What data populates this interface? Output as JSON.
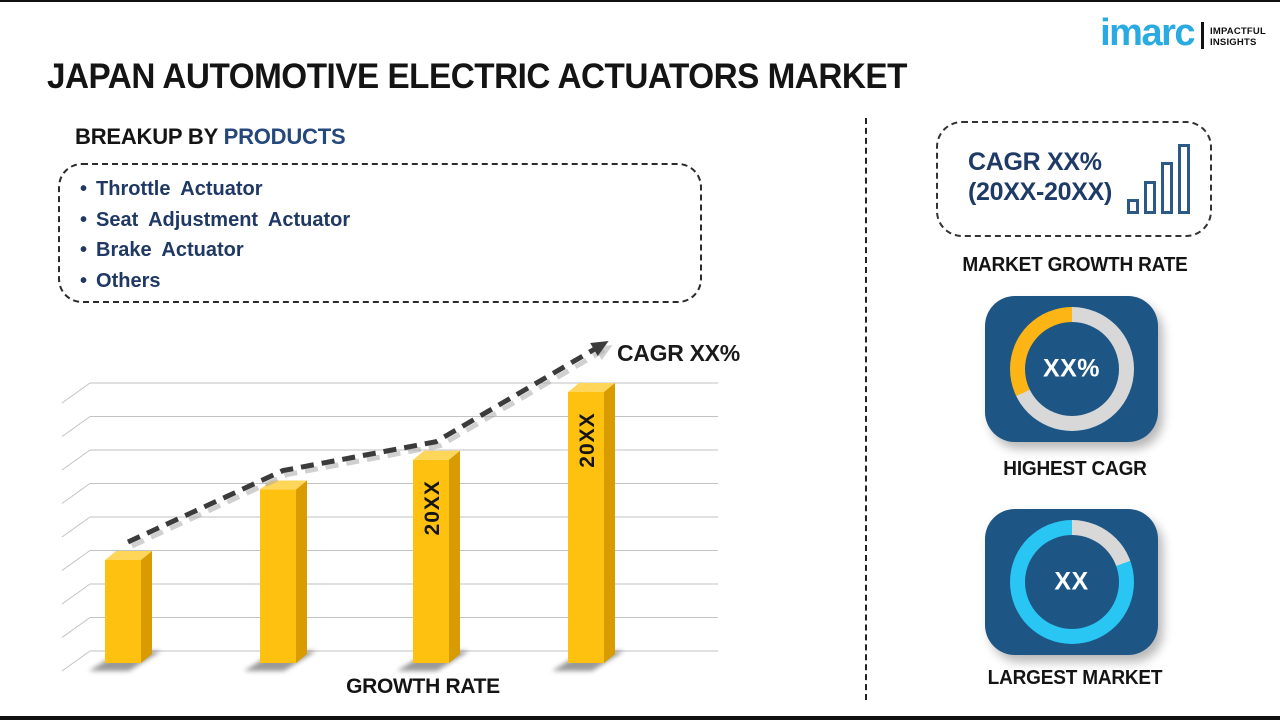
{
  "page": {
    "title": "JAPAN AUTOMOTIVE ELECTRIC ACTUATORS MARKET"
  },
  "logo": {
    "brand": "imarc",
    "tagline_line1": "IMPACTFUL",
    "tagline_line2": "INSIGHTS",
    "brand_color": "#29ABE2"
  },
  "breakup": {
    "heading_prefix": "BREAKUP BY",
    "heading_highlight": "PRODUCTS",
    "items": [
      "Throttle Actuator",
      "Seat Adjustment Actuator",
      "Brake Actuator",
      "Others"
    ]
  },
  "chart_data": {
    "type": "bar",
    "title": "",
    "xlabel": "GROWTH RATE",
    "ylabel": "",
    "values": [
      38,
      64,
      75,
      100
    ],
    "ylim": [
      0,
      100
    ],
    "bar_labels": [
      "",
      "",
      "20XX",
      "20XX"
    ],
    "trend_label": "CAGR XX%",
    "trend_style": "dashed-arrow-increasing",
    "grid": true,
    "gridlines": 9,
    "legend": false,
    "colors": {
      "bar_front": "#FFC110",
      "bar_top": "#FFD65A",
      "bar_side": "#D89B00",
      "trend": "#3B3B3B",
      "grid": "#C2C2C2",
      "label": "#141414"
    }
  },
  "sidebar": {
    "cagr_box": {
      "line1": "CAGR XX%",
      "line2": "(20XX-20XX)"
    },
    "labels": {
      "market_growth_rate": "MARKET GROWTH RATE",
      "highest_cagr": "HIGHEST CAGR",
      "largest_market": "LARGEST MARKET"
    },
    "highest_cagr": {
      "value": "XX%",
      "ring": {
        "base_color": "#D8D8D8",
        "accent_color": "#FCB515",
        "accent_from_deg": 244,
        "accent_to_deg": 360
      }
    },
    "largest_market": {
      "value": "XX",
      "ring": {
        "base_color": "#D8D8D8",
        "accent_color": "#29C5F3",
        "base_from_deg": 0,
        "base_to_deg": 70
      }
    },
    "panel_blue": "#1D5685"
  },
  "colors": {
    "accent_navy": "#1F3864",
    "heading_highlight_navy": "#24477C",
    "logo_cyan": "#29ABE2",
    "icon_stroke_blue": "#2A5A85"
  }
}
